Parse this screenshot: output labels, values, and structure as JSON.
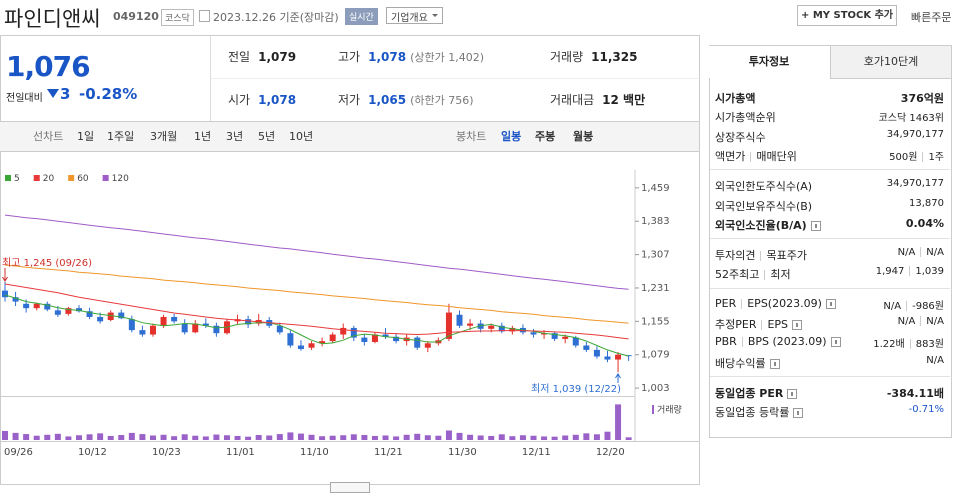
{
  "header": {
    "name": "파인디앤씨",
    "code": "049120",
    "market": "코스닥",
    "date": "2023.12.26 기준(장마감)",
    "realtime": "실시간",
    "overview": "기업개요",
    "mystock": "+ MY STOCK 추가",
    "quick_order": "빠른주문"
  },
  "quote": {
    "price": "1,076",
    "change_label": "전일대비",
    "change": "3",
    "change_pct": "-0.28%"
  },
  "summary": [
    [
      {
        "label": "전일",
        "value": "1,079"
      },
      {
        "label": "고가",
        "value": "1,078",
        "note": "(상한가 1,402)",
        "color": "#1a55c6"
      },
      {
        "label": "거래량",
        "value": "11,325"
      }
    ],
    [
      {
        "label": "시가",
        "value": "1,078",
        "color": "#1a55c6"
      },
      {
        "label": "저가",
        "value": "1,065",
        "note": "(하한가 756)",
        "color": "#1a55c6"
      },
      {
        "label": "거래대금",
        "value": "12 백만"
      }
    ]
  ],
  "chart_tabs": {
    "line_label": "선차트",
    "line_periods": [
      "1일",
      "1주일",
      "3개월",
      "1년",
      "3년",
      "5년",
      "10년"
    ],
    "candle_label": "봉차트",
    "candle_periods": [
      "일봉",
      "주봉",
      "월봉"
    ],
    "active_candle": 0
  },
  "chart_data": {
    "type": "candlestick",
    "categories": [
      "09/26",
      null,
      null,
      null,
      null,
      null,
      null,
      "10/12",
      null,
      null,
      null,
      null,
      null,
      null,
      "10/23",
      null,
      null,
      null,
      null,
      null,
      null,
      "11/01",
      null,
      null,
      null,
      null,
      null,
      null,
      "11/10",
      null,
      null,
      null,
      null,
      null,
      null,
      "11/21",
      null,
      null,
      null,
      null,
      null,
      null,
      "11/30",
      null,
      null,
      null,
      null,
      null,
      null,
      "12/11",
      null,
      null,
      null,
      null,
      null,
      null,
      "12/20",
      null,
      null,
      null
    ],
    "open": [
      1225,
      1210,
      1195,
      1185,
      1195,
      1180,
      1172,
      1185,
      1178,
      1165,
      1158,
      1175,
      1160,
      1135,
      1125,
      1145,
      1165,
      1150,
      1130,
      1150,
      1145,
      1128,
      1155,
      1160,
      1150,
      1158,
      1145,
      1128,
      1100,
      1095,
      1105,
      1110,
      1125,
      1140,
      1118,
      1108,
      1125,
      1120,
      1110,
      1118,
      1095,
      1105,
      1115,
      1170,
      1145,
      1150,
      1138,
      1145,
      1132,
      1140,
      1130,
      1125,
      1128,
      1115,
      1118,
      1100,
      1090,
      1075,
      1068,
      1078
    ],
    "high": [
      1245,
      1222,
      1205,
      1198,
      1200,
      1190,
      1188,
      1192,
      1186,
      1175,
      1180,
      1182,
      1168,
      1145,
      1150,
      1170,
      1172,
      1160,
      1158,
      1162,
      1152,
      1160,
      1170,
      1168,
      1172,
      1165,
      1152,
      1135,
      1112,
      1110,
      1118,
      1130,
      1150,
      1145,
      1125,
      1130,
      1140,
      1128,
      1125,
      1122,
      1110,
      1118,
      1195,
      1180,
      1160,
      1158,
      1150,
      1152,
      1145,
      1148,
      1138,
      1135,
      1132,
      1125,
      1122,
      1108,
      1098,
      1088,
      1085,
      1078
    ],
    "low": [
      1200,
      1190,
      1175,
      1180,
      1178,
      1165,
      1168,
      1175,
      1160,
      1150,
      1155,
      1160,
      1130,
      1120,
      1120,
      1140,
      1150,
      1125,
      1128,
      1140,
      1120,
      1125,
      1148,
      1140,
      1145,
      1140,
      1125,
      1095,
      1088,
      1090,
      1098,
      1105,
      1115,
      1110,
      1100,
      1105,
      1115,
      1105,
      1100,
      1090,
      1085,
      1100,
      1110,
      1140,
      1135,
      1130,
      1130,
      1128,
      1125,
      1125,
      1118,
      1115,
      1110,
      1105,
      1095,
      1085,
      1070,
      1062,
      1039,
      1065
    ],
    "close": [
      1210,
      1200,
      1185,
      1195,
      1182,
      1170,
      1185,
      1178,
      1165,
      1155,
      1175,
      1162,
      1135,
      1125,
      1145,
      1165,
      1155,
      1130,
      1150,
      1145,
      1128,
      1155,
      1160,
      1148,
      1158,
      1145,
      1130,
      1100,
      1092,
      1105,
      1110,
      1125,
      1140,
      1118,
      1108,
      1125,
      1120,
      1110,
      1118,
      1095,
      1105,
      1112,
      1175,
      1145,
      1150,
      1138,
      1145,
      1132,
      1140,
      1130,
      1125,
      1128,
      1115,
      1120,
      1100,
      1090,
      1075,
      1068,
      1079,
      1076
    ],
    "up_color": "#e4312b",
    "down_color": "#2d6fd2",
    "series": [
      {
        "name": "5",
        "color": "#3aa635",
        "values": [
          1215,
          1208,
          1200,
          1196,
          1192,
          1186,
          1182,
          1180,
          1175,
          1171,
          1168,
          1165,
          1160,
          1152,
          1148,
          1145,
          1147,
          1150,
          1149,
          1145,
          1140,
          1142,
          1148,
          1150,
          1152,
          1152,
          1146,
          1136,
          1124,
          1112,
          1104,
          1106,
          1112,
          1122,
          1126,
          1124,
          1120,
          1118,
          1114,
          1112,
          1108,
          1108,
          1122,
          1130,
          1138,
          1145,
          1148,
          1142,
          1138,
          1135,
          1132,
          1128,
          1125,
          1122,
          1118,
          1110,
          1100,
          1090,
          1082,
          1076
        ]
      },
      {
        "name": "20",
        "color": "#e83a3a",
        "values": [
          1240,
          1236,
          1232,
          1228,
          1224,
          1220,
          1215,
          1210,
          1206,
          1202,
          1198,
          1194,
          1190,
          1186,
          1182,
          1178,
          1174,
          1171,
          1168,
          1165,
          1162,
          1160,
          1158,
          1156,
          1154,
          1152,
          1150,
          1148,
          1146,
          1144,
          1141,
          1138,
          1136,
          1134,
          1132,
          1130,
          1128,
          1127,
          1126,
          1125,
          1126,
          1128,
          1130,
          1131,
          1132,
          1133,
          1133,
          1134,
          1134,
          1134,
          1133,
          1132,
          1131,
          1130,
          1128,
          1126,
          1124,
          1121,
          1118,
          1115
        ]
      },
      {
        "name": "60",
        "color": "#f0962a",
        "values": [
          1283,
          1281,
          1278,
          1276,
          1274,
          1272,
          1270,
          1267,
          1265,
          1263,
          1261,
          1258,
          1256,
          1254,
          1252,
          1249,
          1247,
          1245,
          1243,
          1240,
          1238,
          1236,
          1234,
          1231,
          1229,
          1227,
          1225,
          1222,
          1220,
          1218,
          1216,
          1213,
          1211,
          1209,
          1207,
          1204,
          1202,
          1200,
          1198,
          1195,
          1193,
          1191,
          1189,
          1186,
          1184,
          1182,
          1180,
          1177,
          1175,
          1173,
          1171,
          1168,
          1166,
          1164,
          1162,
          1159,
          1157,
          1155,
          1153,
          1151
        ]
      },
      {
        "name": "120",
        "color": "#a05cc8",
        "values": [
          1397,
          1394,
          1391,
          1389,
          1386,
          1383,
          1380,
          1377,
          1374,
          1371,
          1368,
          1366,
          1363,
          1360,
          1357,
          1354,
          1351,
          1348,
          1345,
          1343,
          1340,
          1337,
          1334,
          1331,
          1328,
          1325,
          1322,
          1320,
          1317,
          1314,
          1311,
          1308,
          1305,
          1302,
          1299,
          1297,
          1294,
          1291,
          1288,
          1285,
          1282,
          1279,
          1276,
          1274,
          1271,
          1268,
          1265,
          1262,
          1259,
          1256,
          1253,
          1251,
          1248,
          1245,
          1242,
          1239,
          1236,
          1233,
          1230,
          1228
        ]
      }
    ],
    "volume_label": "거래량",
    "volume_color": "#9a62c8",
    "volume": [
      38000,
      30000,
      25000,
      18000,
      22000,
      26000,
      15000,
      20000,
      24000,
      28000,
      17000,
      21000,
      30000,
      25000,
      19000,
      22000,
      16000,
      24000,
      18000,
      15000,
      23000,
      20000,
      17000,
      14000,
      21000,
      19000,
      25000,
      32000,
      27000,
      22000,
      16000,
      18000,
      20000,
      24000,
      21000,
      17000,
      19000,
      15000,
      22000,
      26000,
      20000,
      18000,
      40000,
      30000,
      22000,
      19000,
      17000,
      24000,
      16000,
      20000,
      18000,
      15000,
      14000,
      19000,
      22000,
      28000,
      24000,
      35000,
      150000,
      11325
    ],
    "y2lim": [
      0,
      160000
    ],
    "ylim": [
      985,
      1486
    ],
    "yticks": [
      {
        "value": 1459,
        "label": "1,459"
      },
      {
        "value": 1383,
        "label": "1,383"
      },
      {
        "value": 1307,
        "label": "1,307"
      },
      {
        "value": 1231,
        "label": "1,231"
      },
      {
        "value": 1155,
        "label": "1,155"
      },
      {
        "value": 1079,
        "label": "1,079"
      },
      {
        "value": 1003,
        "label": "1,003"
      }
    ],
    "annotations": [
      {
        "text": "최고 1,245 (09/26)",
        "color": "#d0302a"
      },
      {
        "text": "최저 1,039 (12/22)",
        "color": "#2d6fd2"
      }
    ]
  },
  "investment_info": {
    "tabs": [
      "투자정보",
      "호가10단계"
    ],
    "groups": [
      [
        {
          "label": [
            "시가총액"
          ],
          "value": [
            "376억원"
          ],
          "bold": true
        },
        {
          "label": [
            "시가총액순위"
          ],
          "value": [
            "코스닥 1463위"
          ]
        },
        {
          "label": [
            "상장주식수"
          ],
          "value": [
            "34,970,177"
          ]
        },
        {
          "label": [
            "액면가",
            "매매단위"
          ],
          "value": [
            "500원",
            "1주"
          ]
        }
      ],
      [
        {
          "label": [
            "외국인한도주식수(A)"
          ],
          "value": [
            "34,970,177"
          ]
        },
        {
          "label": [
            "외국인보유주식수(B)"
          ],
          "value": [
            "13,870"
          ]
        },
        {
          "label": [
            "외국인소진율(B/A)"
          ],
          "value": [
            "0.04%"
          ],
          "bold": true,
          "help": true
        }
      ],
      [
        {
          "label": [
            "투자의견",
            "목표주가"
          ],
          "value": [
            "N/A",
            "N/A"
          ]
        },
        {
          "label": [
            "52주최고",
            "최저"
          ],
          "value": [
            "1,947",
            "1,039"
          ]
        }
      ],
      [
        {
          "label": [
            "PER",
            "EPS(2023.09)"
          ],
          "value": [
            "N/A",
            "-986원"
          ],
          "help": true
        },
        {
          "label": [
            "추정PER",
            "EPS"
          ],
          "value": [
            "N/A",
            "N/A"
          ],
          "help": true
        },
        {
          "label": [
            "PBR",
            "BPS (2023.09)"
          ],
          "value": [
            "1.22배",
            "883원"
          ],
          "help": true
        },
        {
          "label": [
            "배당수익률"
          ],
          "value": [
            "N/A"
          ],
          "help": true
        }
      ],
      [
        {
          "label": [
            "동일업종 PER"
          ],
          "value": [
            "-384.11배"
          ],
          "bold": true,
          "help": true
        },
        {
          "label": [
            "동일업종 등락률"
          ],
          "value": [
            "-0.71%"
          ],
          "help": true,
          "color": "#1a55c6"
        }
      ]
    ]
  }
}
